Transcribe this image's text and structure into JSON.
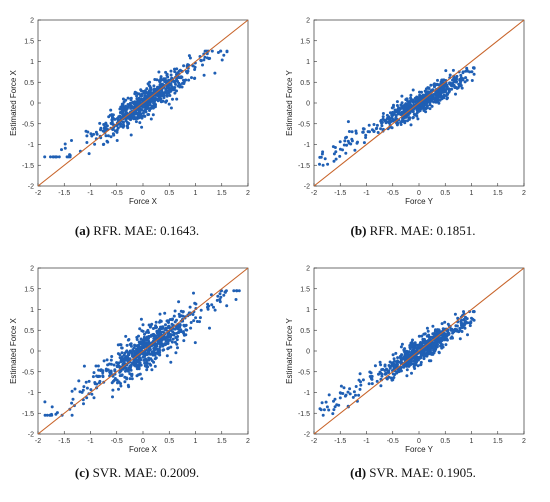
{
  "chart_data": [
    {
      "type": "scatter",
      "panel_tag": "(a)",
      "caption": "RFR. MAE: 0.1643.",
      "xlabel": "Force X",
      "ylabel": "Estimated Force X",
      "xlim": [
        -2,
        2
      ],
      "ylim": [
        -2,
        2
      ],
      "xticks": [
        "-2",
        "-1.5",
        "-1",
        "-0.5",
        "0",
        "0.5",
        "1",
        "1.5",
        "2"
      ],
      "yticks": [
        "2",
        "1.5",
        "1",
        "0.5",
        "0",
        "-0.5",
        "-1",
        "-1.5",
        "-2"
      ],
      "identity_line": [
        [
          -2,
          -2
        ],
        [
          2,
          2
        ]
      ],
      "slope": 0.88,
      "spread": 0.17,
      "xrange": [
        -1.9,
        1.6
      ],
      "ycap": [
        -1.3,
        1.25
      ],
      "n": 700,
      "point_color": "#1f5fb4",
      "line_color": "#c8642a"
    },
    {
      "type": "scatter",
      "panel_tag": "(b)",
      "caption": "RFR. MAE: 0.1851.",
      "xlabel": "Force Y",
      "ylabel": "Estimated Force Y",
      "xlim": [
        -2,
        2
      ],
      "ylim": [
        -2,
        2
      ],
      "xticks": [
        "-2",
        "-1.5",
        "-1",
        "-0.5",
        "0",
        "0.5",
        "1",
        "1.5",
        "2"
      ],
      "yticks": [
        "2",
        "1.5",
        "1",
        "0.5",
        "0",
        "-0.5",
        "-1",
        "-1.5",
        "-2"
      ],
      "identity_line": [
        [
          -2,
          -2
        ],
        [
          2,
          2
        ]
      ],
      "slope": 0.7,
      "spread": 0.13,
      "xrange": [
        -1.9,
        1.05
      ],
      "ycap": [
        -1.5,
        0.85
      ],
      "n": 650,
      "point_color": "#1f5fb4",
      "line_color": "#c8642a"
    },
    {
      "type": "scatter",
      "panel_tag": "(c)",
      "caption": "SVR. MAE: 0.2009.",
      "xlabel": "Force X",
      "ylabel": "Estimated Force X",
      "xlim": [
        -2,
        2
      ],
      "ylim": [
        -2,
        2
      ],
      "xticks": [
        "-2",
        "-1.5",
        "-1",
        "-0.5",
        "0",
        "0.5",
        "1",
        "1.5",
        "2"
      ],
      "yticks": [
        "2",
        "1.5",
        "1",
        "0.5",
        "0",
        "-0.5",
        "-1",
        "-1.5",
        "-2"
      ],
      "identity_line": [
        [
          -2,
          -2
        ],
        [
          2,
          2
        ]
      ],
      "slope": 0.85,
      "spread": 0.24,
      "xrange": [
        -1.9,
        1.85
      ],
      "ycap": [
        -1.55,
        1.45
      ],
      "n": 700,
      "point_color": "#1f5fb4",
      "line_color": "#c8642a"
    },
    {
      "type": "scatter",
      "panel_tag": "(d)",
      "caption": "SVR. MAE: 0.1905.",
      "xlabel": "Force Y",
      "ylabel": "Estimated Force Y",
      "xlim": [
        -2,
        2
      ],
      "ylim": [
        -2,
        2
      ],
      "xticks": [
        "-2",
        "-1.5",
        "-1",
        "-0.5",
        "0",
        "0.5",
        "1",
        "1.5",
        "2"
      ],
      "yticks": [
        "2",
        "1.5",
        "1",
        "0.5",
        "0",
        "-0.5",
        "-1",
        "-1.5",
        "-2"
      ],
      "identity_line": [
        [
          -2,
          -2
        ],
        [
          2,
          2
        ]
      ],
      "slope": 0.75,
      "spread": 0.15,
      "xrange": [
        -1.9,
        1.05
      ],
      "ycap": [
        -1.55,
        0.95
      ],
      "n": 650,
      "point_color": "#1f5fb4",
      "line_color": "#c8642a"
    }
  ]
}
